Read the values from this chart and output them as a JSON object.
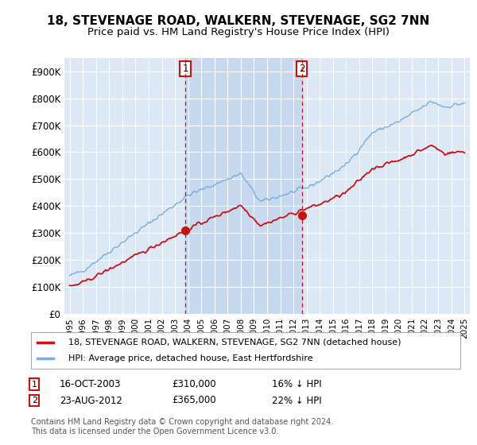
{
  "title": "18, STEVENAGE ROAD, WALKERN, STEVENAGE, SG2 7NN",
  "subtitle": "Price paid vs. HM Land Registry's House Price Index (HPI)",
  "ylim": [
    0,
    950000
  ],
  "yticks": [
    0,
    100000,
    200000,
    300000,
    400000,
    500000,
    600000,
    700000,
    800000,
    900000
  ],
  "ytick_labels": [
    "£0",
    "£100K",
    "£200K",
    "£300K",
    "£400K",
    "£500K",
    "£600K",
    "£700K",
    "£800K",
    "£900K"
  ],
  "hpi_color": "#7aaddc",
  "price_color": "#cc1111",
  "vline_color": "#cc1111",
  "annotation_box_color": "#cc1111",
  "plot_bg_color": "#dce8f5",
  "grid_color": "#ffffff",
  "shade_color": "#c5d8ef",
  "legend_label_price": "18, STEVENAGE ROAD, WALKERN, STEVENAGE, SG2 7NN (detached house)",
  "legend_label_hpi": "HPI: Average price, detached house, East Hertfordshire",
  "transaction1_date": "16-OCT-2003",
  "transaction1_price": 310000,
  "transaction1_pct": "16% ↓ HPI",
  "transaction1_year": 2003.79,
  "transaction2_date": "23-AUG-2012",
  "transaction2_price": 365000,
  "transaction2_pct": "22% ↓ HPI",
  "transaction2_year": 2012.64,
  "footnote": "Contains HM Land Registry data © Crown copyright and database right 2024.\nThis data is licensed under the Open Government Licence v3.0.",
  "title_fontsize": 11,
  "subtitle_fontsize": 9.5,
  "xlim_left": 1994.6,
  "xlim_right": 2025.4
}
